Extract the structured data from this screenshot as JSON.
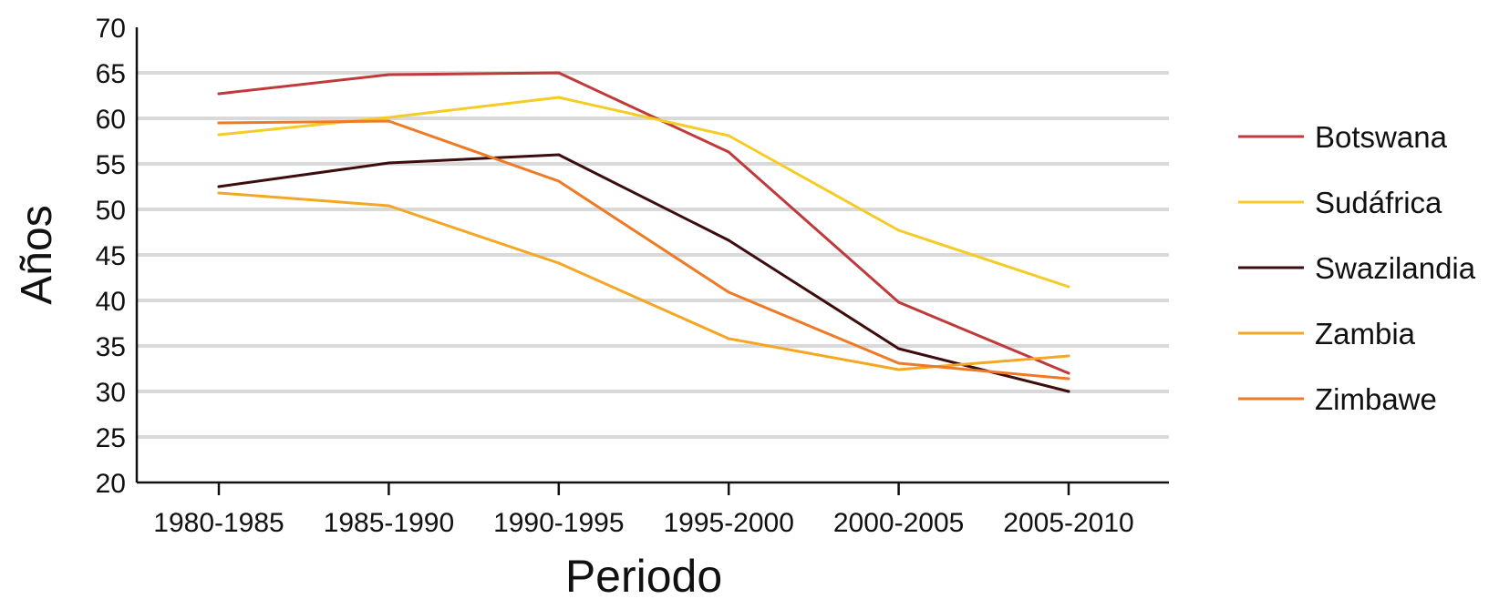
{
  "chart_data": {
    "type": "line",
    "xlabel": "Periodo",
    "ylabel": "Años",
    "categories": [
      "1980-1985",
      "1985-1990",
      "1990-1995",
      "1995-2000",
      "2000-2005",
      "2005-2010"
    ],
    "ylim": [
      20,
      70
    ],
    "yticks": [
      20,
      25,
      30,
      35,
      40,
      45,
      50,
      55,
      60,
      65,
      70
    ],
    "grid": "horizontal",
    "legend_position": "right",
    "series": [
      {
        "name": "Botswana",
        "color": "#c0393b",
        "values": [
          62.7,
          64.8,
          65.0,
          56.3,
          39.8,
          32.0
        ]
      },
      {
        "name": "Sudáfrica",
        "color": "#f5cc25",
        "values": [
          58.2,
          60.1,
          62.3,
          58.1,
          47.7,
          41.5
        ]
      },
      {
        "name": "Swazilandia",
        "color": "#3d0d0d",
        "values": [
          52.5,
          55.1,
          56.0,
          46.6,
          34.7,
          30.0
        ]
      },
      {
        "name": "Zambia",
        "color": "#f5a623",
        "values": [
          51.8,
          50.4,
          44.1,
          35.8,
          32.4,
          33.9
        ]
      },
      {
        "name": "Zimbabwe",
        "label": "Zimbawe",
        "color": "#ef7a25",
        "values": [
          59.5,
          59.7,
          53.1,
          40.9,
          33.1,
          31.4
        ]
      }
    ]
  }
}
